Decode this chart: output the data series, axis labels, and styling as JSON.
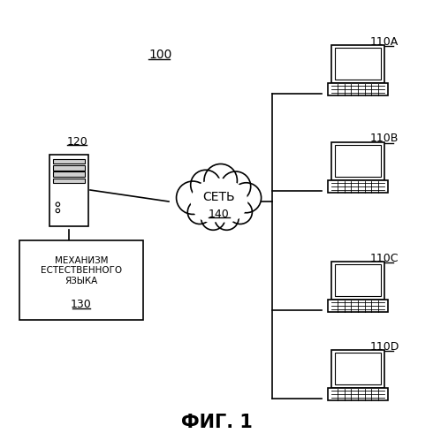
{
  "title": "ФИГ. 1",
  "label_100": "100",
  "label_120": "120",
  "label_130": "130",
  "label_140": "140",
  "label_110A": "110A",
  "label_110B": "110B",
  "label_110C": "110C",
  "label_110D": "110D",
  "text_network": "СЕТЬ",
  "text_mechanism": "МЕХАНИЗМ\nЕСТЕСТВЕННОГО\nЯЗЫКА",
  "bg_color": "#ffffff",
  "line_color": "#000000",
  "text_color": "#000000"
}
